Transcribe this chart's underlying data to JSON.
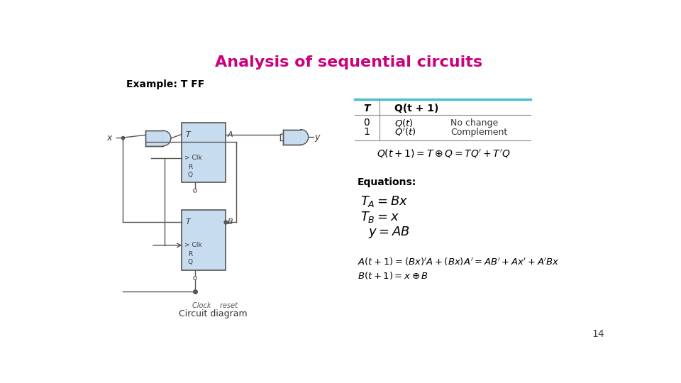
{
  "title": "Analysis of sequential circuits",
  "title_color": "#CC007A",
  "title_fontsize": 16,
  "example_label": "Example: T FF",
  "page_number": "14",
  "background_color": "#ffffff",
  "circuit_label": "Circuit diagram",
  "circuit_sublabel": "Clock    reset",
  "table_top_color": "#4FBFCF",
  "table_line_color": "#888888",
  "wire_color": "#555555",
  "ff_face_color": "#C8DCF0",
  "ff_edge_color": "#555555"
}
